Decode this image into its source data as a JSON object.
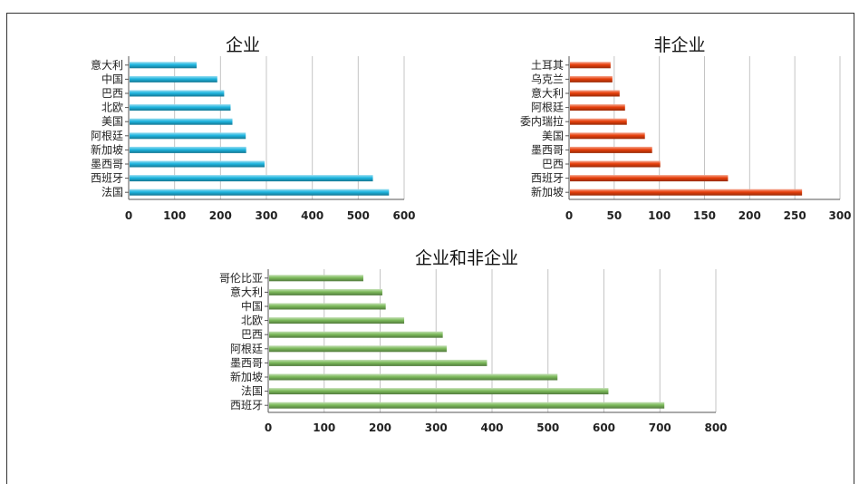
{
  "chart_data": [
    {
      "type": "bar",
      "orientation": "horizontal",
      "title": "企业",
      "color": "#1fb6e0",
      "categories": [
        "意大利",
        "中国",
        "巴西",
        "北欧",
        "美国",
        "阿根廷",
        "新加坡",
        "墨西哥",
        "西班牙",
        "法国"
      ],
      "values": [
        148,
        193,
        208,
        222,
        226,
        255,
        256,
        296,
        532,
        567
      ],
      "xlim": [
        0,
        600
      ],
      "xticks": [
        "0",
        "100",
        "200",
        "300",
        "400",
        "500",
        "600"
      ],
      "grid": true
    },
    {
      "type": "bar",
      "orientation": "horizontal",
      "title": "非企业",
      "color": "#e8400c",
      "categories": [
        "土耳其",
        "乌克兰",
        "意大利",
        "阿根廷",
        "委内瑞拉",
        "美国",
        "墨西哥",
        "巴西",
        "西班牙",
        "新加坡"
      ],
      "values": [
        46,
        48,
        56,
        62,
        64,
        84,
        92,
        101,
        176,
        258
      ],
      "xlim": [
        0,
        300
      ],
      "xticks": [
        "0",
        "50",
        "100",
        "150",
        "200",
        "250",
        "300"
      ],
      "grid": true
    },
    {
      "type": "bar",
      "orientation": "horizontal",
      "title": "企业和非企业",
      "color": "#7dbb5c",
      "categories": [
        "哥伦比亚",
        "意大利",
        "中国",
        "北欧",
        "巴西",
        "阿根廷",
        "墨西哥",
        "新加坡",
        "法国",
        "西班牙"
      ],
      "values": [
        170,
        204,
        210,
        243,
        312,
        319,
        391,
        517,
        608,
        708
      ],
      "xlim": [
        0,
        800
      ],
      "xticks": [
        "0",
        "100",
        "200",
        "300",
        "400",
        "500",
        "600",
        "700",
        "800"
      ],
      "grid": true
    }
  ]
}
